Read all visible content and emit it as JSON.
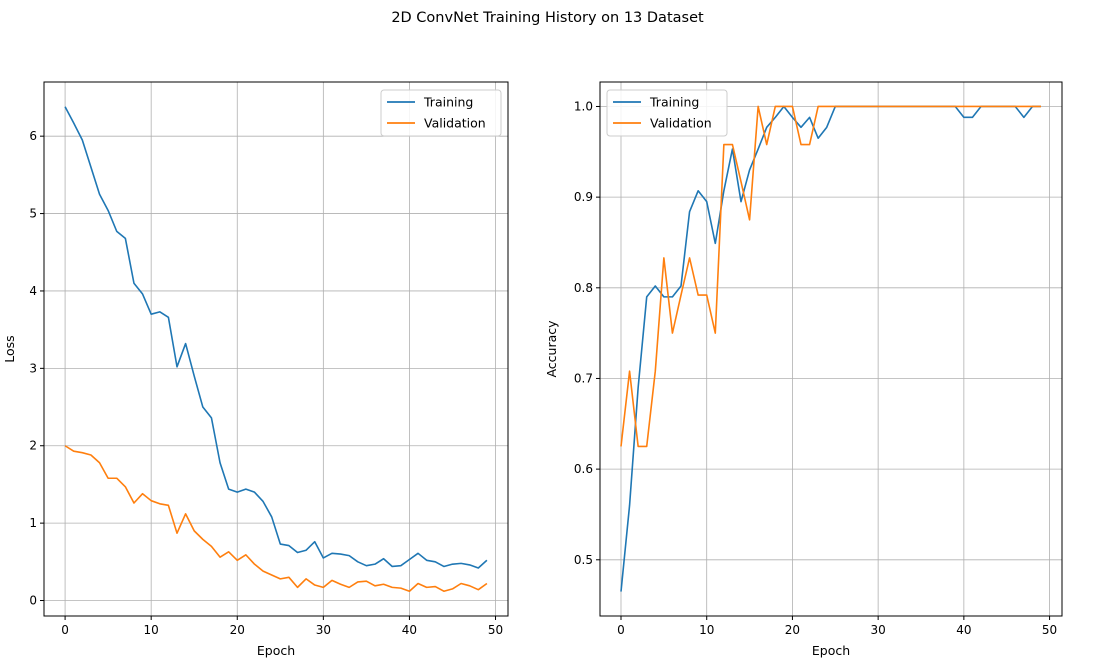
{
  "figure": {
    "title": "2D ConvNet Training History on 13 Dataset"
  },
  "colors": {
    "training": "#1f77b4",
    "validation": "#ff7f0e",
    "grid": "#b0b0b0",
    "axes": "#000000",
    "legend_border": "#cccccc"
  },
  "chart_data": [
    {
      "type": "line",
      "title": "",
      "xlabel": "Epoch",
      "ylabel": "Loss",
      "xlim": [
        -2.45,
        51.45
      ],
      "ylim": [
        -0.2,
        6.7
      ],
      "xticks": [
        0,
        10,
        20,
        30,
        40,
        50
      ],
      "yticks": [
        0,
        1,
        2,
        3,
        4,
        5,
        6
      ],
      "grid": true,
      "legend": "top-right",
      "x": [
        0,
        1,
        2,
        3,
        4,
        5,
        6,
        7,
        8,
        9,
        10,
        11,
        12,
        13,
        14,
        15,
        16,
        17,
        18,
        19,
        20,
        21,
        22,
        23,
        24,
        25,
        26,
        27,
        28,
        29,
        30,
        31,
        32,
        33,
        34,
        35,
        36,
        37,
        38,
        39,
        40,
        41,
        42,
        43,
        44,
        45,
        46,
        47,
        48,
        49
      ],
      "series": [
        {
          "name": "Training",
          "values": [
            6.38,
            6.17,
            5.95,
            5.6,
            5.25,
            5.04,
            4.77,
            4.68,
            4.1,
            3.96,
            3.7,
            3.73,
            3.66,
            3.02,
            3.32,
            2.9,
            2.5,
            2.36,
            1.78,
            1.44,
            1.4,
            1.44,
            1.4,
            1.28,
            1.08,
            0.73,
            0.71,
            0.62,
            0.65,
            0.76,
            0.55,
            0.61,
            0.6,
            0.58,
            0.5,
            0.45,
            0.47,
            0.54,
            0.44,
            0.45,
            0.53,
            0.61,
            0.52,
            0.5,
            0.44,
            0.47,
            0.48,
            0.46,
            0.42,
            0.52
          ]
        },
        {
          "name": "Validation",
          "values": [
            2.0,
            1.93,
            1.91,
            1.88,
            1.78,
            1.58,
            1.58,
            1.47,
            1.26,
            1.38,
            1.29,
            1.25,
            1.23,
            0.87,
            1.12,
            0.9,
            0.79,
            0.7,
            0.56,
            0.63,
            0.52,
            0.59,
            0.47,
            0.38,
            0.33,
            0.28,
            0.3,
            0.17,
            0.28,
            0.2,
            0.17,
            0.26,
            0.21,
            0.17,
            0.24,
            0.25,
            0.19,
            0.21,
            0.17,
            0.16,
            0.12,
            0.22,
            0.17,
            0.18,
            0.12,
            0.15,
            0.22,
            0.19,
            0.14,
            0.22
          ]
        }
      ]
    },
    {
      "type": "line",
      "title": "",
      "xlabel": "Epoch",
      "ylabel": "Accuracy",
      "xlim": [
        -2.45,
        51.45
      ],
      "ylim": [
        0.438,
        1.027
      ],
      "xticks": [
        0,
        10,
        20,
        30,
        40,
        50
      ],
      "yticks": [
        0.5,
        0.6,
        0.7,
        0.8,
        0.9,
        1.0
      ],
      "ytick_labels": [
        "0.5",
        "0.6",
        "0.7",
        "0.8",
        "0.9",
        "1.0"
      ],
      "grid": true,
      "legend": "top-left",
      "x": [
        0,
        1,
        2,
        3,
        4,
        5,
        6,
        7,
        8,
        9,
        10,
        11,
        12,
        13,
        14,
        15,
        16,
        17,
        18,
        19,
        20,
        21,
        22,
        23,
        24,
        25,
        26,
        27,
        28,
        29,
        30,
        31,
        32,
        33,
        34,
        35,
        36,
        37,
        38,
        39,
        40,
        41,
        42,
        43,
        44,
        45,
        46,
        47,
        48,
        49
      ],
      "series": [
        {
          "name": "Training",
          "values": [
            0.465,
            0.56,
            0.69,
            0.79,
            0.802,
            0.79,
            0.79,
            0.802,
            0.884,
            0.907,
            0.895,
            0.849,
            0.907,
            0.953,
            0.895,
            0.93,
            0.953,
            0.977,
            0.988,
            1.0,
            0.988,
            0.977,
            0.988,
            0.965,
            0.977,
            1.0,
            1.0,
            1.0,
            1.0,
            1.0,
            1.0,
            1.0,
            1.0,
            1.0,
            1.0,
            1.0,
            1.0,
            1.0,
            1.0,
            1.0,
            0.988,
            0.988,
            1.0,
            1.0,
            1.0,
            1.0,
            1.0,
            0.988,
            1.0,
            1.0
          ]
        },
        {
          "name": "Validation",
          "values": [
            0.625,
            0.708,
            0.625,
            0.625,
            0.708,
            0.833,
            0.75,
            0.792,
            0.833,
            0.792,
            0.792,
            0.75,
            0.958,
            0.958,
            0.917,
            0.875,
            1.0,
            0.958,
            1.0,
            1.0,
            1.0,
            0.958,
            0.958,
            1.0,
            1.0,
            1.0,
            1.0,
            1.0,
            1.0,
            1.0,
            1.0,
            1.0,
            1.0,
            1.0,
            1.0,
            1.0,
            1.0,
            1.0,
            1.0,
            1.0,
            1.0,
            1.0,
            1.0,
            1.0,
            1.0,
            1.0,
            1.0,
            1.0,
            1.0,
            1.0
          ]
        }
      ]
    }
  ]
}
